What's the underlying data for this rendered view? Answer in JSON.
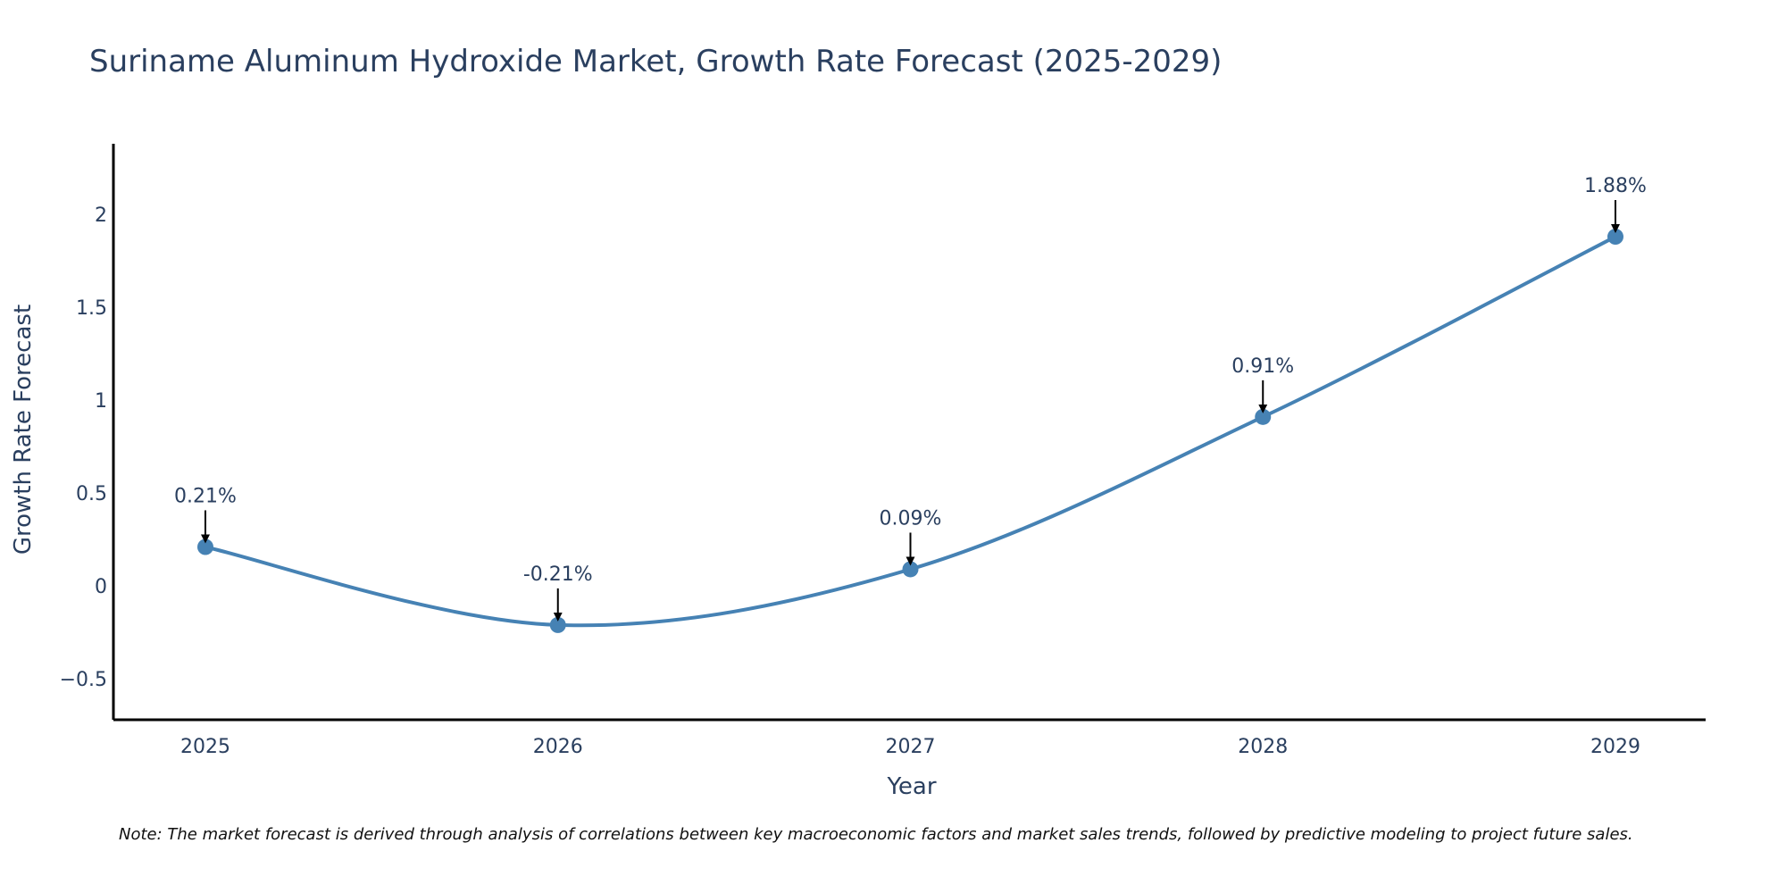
{
  "chart_data": {
    "type": "line",
    "title": "Suriname Aluminum Hydroxide Market, Growth Rate Forecast (2025-2029)",
    "xlabel": "Year",
    "ylabel": "Growth Rate Forecast",
    "categories": [
      "2025",
      "2026",
      "2027",
      "2028",
      "2029"
    ],
    "series": [
      {
        "name": "Growth Rate Forecast",
        "values": [
          0.21,
          -0.21,
          0.09,
          0.91,
          1.88
        ],
        "labels": [
          "0.21%",
          "-0.21%",
          "0.09%",
          "0.91%",
          "1.88%"
        ]
      }
    ],
    "ylim": [
      -0.72,
      2.38
    ],
    "yticks": [
      -0.5,
      0,
      0.5,
      1,
      1.5,
      2
    ],
    "ytick_labels": [
      "−0.5",
      "0",
      "0.5",
      "1",
      "1.5",
      "2"
    ],
    "grid": false,
    "line_shape": "spline",
    "colors": {
      "line": "#4682b4",
      "marker": "#4682b4",
      "axis": "#000000",
      "arrow": "#000000",
      "text": "#2a3f5f"
    },
    "note": "Note: The market forecast is derived through analysis of correlations between key macroeconomic factors and market sales trends, followed by predictive modeling to project future sales."
  }
}
